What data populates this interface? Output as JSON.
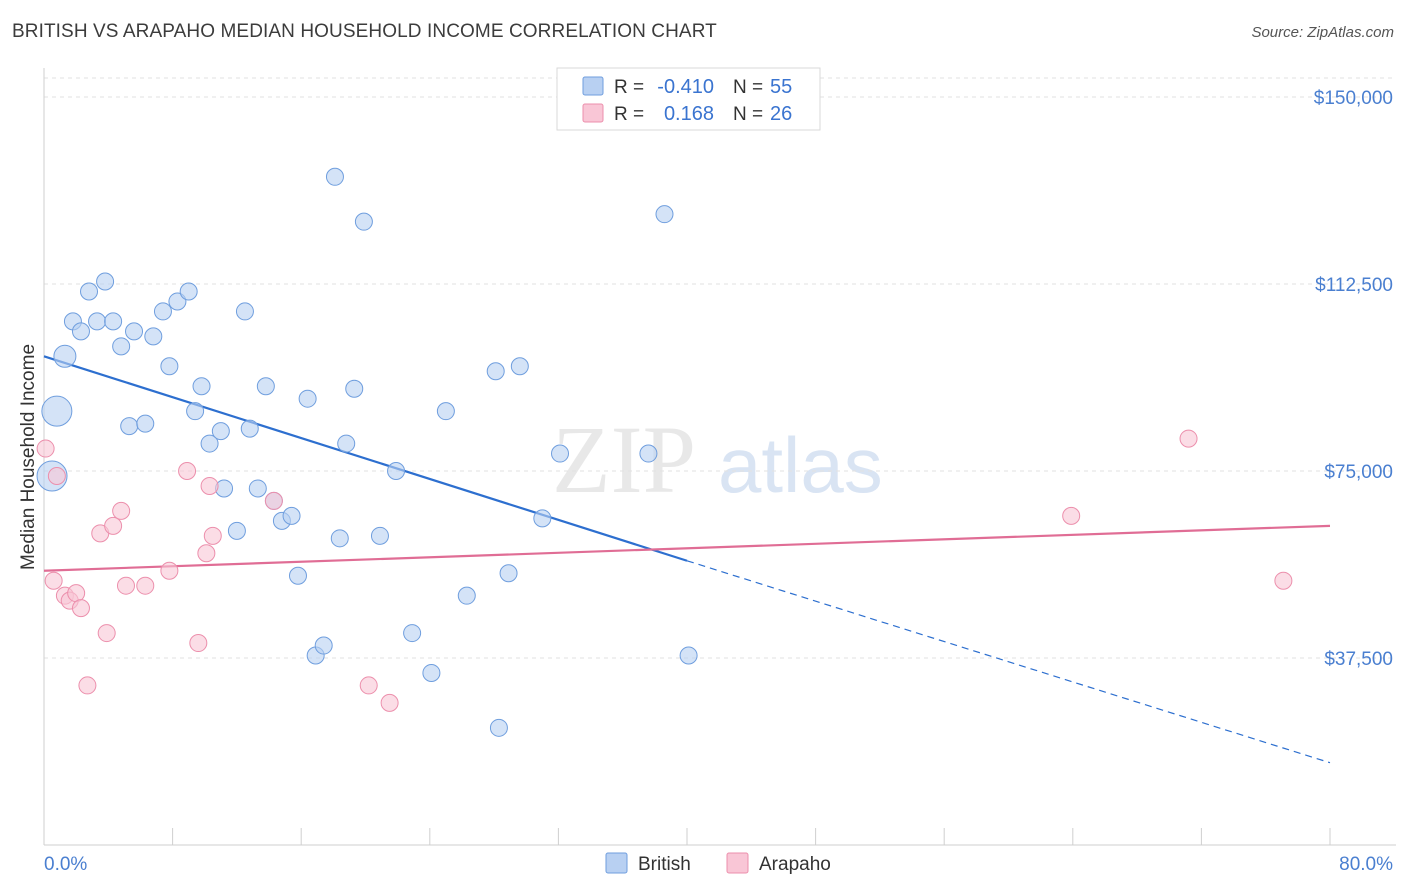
{
  "title": "BRITISH VS ARAPAHO MEDIAN HOUSEHOLD INCOME CORRELATION CHART",
  "source": "Source: ZipAtlas.com",
  "watermark": {
    "zip": "ZIP",
    "atlas": "atlas"
  },
  "colors": {
    "british_fill": "#b8d0f2",
    "british_stroke": "#6f9ede",
    "british_line": "#2d6fcf",
    "arapaho_fill": "#f9c6d6",
    "arapaho_stroke": "#ec8fac",
    "arapaho_line": "#e06d95",
    "tick_label": "#4a7fd0",
    "grid": "#e2e2e2"
  },
  "legend_top": {
    "rows": [
      {
        "series": "British",
        "r_label": "R =",
        "r_value": "-0.410",
        "n_label": "N =",
        "n_value": "55"
      },
      {
        "series": "Arapaho",
        "r_label": "R =",
        "r_value": "0.168",
        "n_label": "N =",
        "n_value": "26"
      }
    ]
  },
  "legend_bottom": [
    "British",
    "Arapaho"
  ],
  "chart_data": {
    "type": "scatter",
    "title": "BRITISH VS ARAPAHO MEDIAN HOUSEHOLD INCOME CORRELATION CHART",
    "xlabel": "",
    "ylabel": "Median Household Income",
    "xlim": [
      0,
      80
    ],
    "ylim": [
      0,
      155000
    ],
    "x_tick_labels": [
      "0.0%",
      "80.0%"
    ],
    "y_ticks": [
      37500,
      75000,
      112500,
      150000
    ],
    "y_tick_labels": [
      "$37,500",
      "$75,000",
      "$112,500",
      "$150,000"
    ],
    "grid": "horizontal dashed",
    "legend_placement": "top-center and bottom-center",
    "series": [
      {
        "name": "British",
        "r": -0.41,
        "n": 55,
        "trend": {
          "x0": 0,
          "y0": 98000,
          "x1": 40,
          "y1": 57000,
          "dashed_to_x": 80,
          "dashed_to_y": 16500
        },
        "points": [
          {
            "x": 0.8,
            "y": 87000,
            "s": "l"
          },
          {
            "x": 0.5,
            "y": 74000,
            "s": "l"
          },
          {
            "x": 1.3,
            "y": 98000,
            "s": "m"
          },
          {
            "x": 1.8,
            "y": 105000
          },
          {
            "x": 2.3,
            "y": 103000
          },
          {
            "x": 2.8,
            "y": 111000
          },
          {
            "x": 3.8,
            "y": 113000
          },
          {
            "x": 3.3,
            "y": 105000
          },
          {
            "x": 4.3,
            "y": 105000
          },
          {
            "x": 4.8,
            "y": 100000
          },
          {
            "x": 5.3,
            "y": 84000
          },
          {
            "x": 5.6,
            "y": 103000
          },
          {
            "x": 6.3,
            "y": 84500
          },
          {
            "x": 6.8,
            "y": 102000
          },
          {
            "x": 7.8,
            "y": 96000
          },
          {
            "x": 7.4,
            "y": 107000
          },
          {
            "x": 8.3,
            "y": 109000
          },
          {
            "x": 9.0,
            "y": 111000
          },
          {
            "x": 9.4,
            "y": 87000
          },
          {
            "x": 9.8,
            "y": 92000
          },
          {
            "x": 10.3,
            "y": 80500
          },
          {
            "x": 11.0,
            "y": 83000
          },
          {
            "x": 11.2,
            "y": 71500
          },
          {
            "x": 12.0,
            "y": 63000
          },
          {
            "x": 12.5,
            "y": 107000
          },
          {
            "x": 12.8,
            "y": 83500
          },
          {
            "x": 13.3,
            "y": 71500
          },
          {
            "x": 13.8,
            "y": 92000
          },
          {
            "x": 14.3,
            "y": 69000
          },
          {
            "x": 14.8,
            "y": 65000
          },
          {
            "x": 15.4,
            "y": 66000
          },
          {
            "x": 15.8,
            "y": 54000
          },
          {
            "x": 16.4,
            "y": 89500
          },
          {
            "x": 16.9,
            "y": 38000
          },
          {
            "x": 17.4,
            "y": 40000
          },
          {
            "x": 18.1,
            "y": 134000
          },
          {
            "x": 18.4,
            "y": 61500
          },
          {
            "x": 18.8,
            "y": 80500
          },
          {
            "x": 19.3,
            "y": 91500
          },
          {
            "x": 19.9,
            "y": 125000
          },
          {
            "x": 20.9,
            "y": 62000
          },
          {
            "x": 21.9,
            "y": 75000
          },
          {
            "x": 22.9,
            "y": 42500
          },
          {
            "x": 24.1,
            "y": 34500
          },
          {
            "x": 25.0,
            "y": 87000
          },
          {
            "x": 26.3,
            "y": 50000
          },
          {
            "x": 28.1,
            "y": 95000
          },
          {
            "x": 28.3,
            "y": 23500
          },
          {
            "x": 28.9,
            "y": 54500
          },
          {
            "x": 29.6,
            "y": 96000
          },
          {
            "x": 31.0,
            "y": 65500
          },
          {
            "x": 32.1,
            "y": 78500
          },
          {
            "x": 37.6,
            "y": 78500
          },
          {
            "x": 38.6,
            "y": 126500
          },
          {
            "x": 40.1,
            "y": 38000
          }
        ]
      },
      {
        "name": "Arapaho",
        "r": 0.168,
        "n": 26,
        "trend": {
          "x0": 0,
          "y0": 55000,
          "x1": 80,
          "y1": 64000
        },
        "points": [
          {
            "x": 0.1,
            "y": 79500
          },
          {
            "x": 0.8,
            "y": 74000
          },
          {
            "x": 0.6,
            "y": 53000
          },
          {
            "x": 1.3,
            "y": 50000
          },
          {
            "x": 1.6,
            "y": 49000
          },
          {
            "x": 2.0,
            "y": 50500
          },
          {
            "x": 2.3,
            "y": 47500
          },
          {
            "x": 2.7,
            "y": 32000
          },
          {
            "x": 3.5,
            "y": 62500
          },
          {
            "x": 3.9,
            "y": 42500
          },
          {
            "x": 4.3,
            "y": 64000
          },
          {
            "x": 4.8,
            "y": 67000
          },
          {
            "x": 5.1,
            "y": 52000
          },
          {
            "x": 6.3,
            "y": 52000
          },
          {
            "x": 7.8,
            "y": 55000
          },
          {
            "x": 8.9,
            "y": 75000
          },
          {
            "x": 9.6,
            "y": 40500
          },
          {
            "x": 10.1,
            "y": 58500
          },
          {
            "x": 10.3,
            "y": 72000
          },
          {
            "x": 10.5,
            "y": 62000
          },
          {
            "x": 14.3,
            "y": 69000
          },
          {
            "x": 20.2,
            "y": 32000
          },
          {
            "x": 21.5,
            "y": 28500
          },
          {
            "x": 63.9,
            "y": 66000
          },
          {
            "x": 71.2,
            "y": 81500
          },
          {
            "x": 77.1,
            "y": 53000
          }
        ]
      }
    ]
  }
}
